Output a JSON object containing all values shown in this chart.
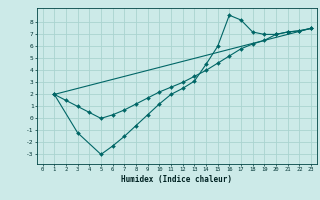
{
  "title": "",
  "xlabel": "Humidex (Indice chaleur)",
  "bg_color": "#cceae8",
  "grid_color": "#aad4d0",
  "line_color": "#006666",
  "xlim": [
    -0.5,
    23.5
  ],
  "ylim": [
    -3.8,
    9.2
  ],
  "xticks": [
    0,
    1,
    2,
    3,
    4,
    5,
    6,
    7,
    8,
    9,
    10,
    11,
    12,
    13,
    14,
    15,
    16,
    17,
    18,
    19,
    20,
    21,
    22,
    23
  ],
  "yticks": [
    -3,
    -2,
    -1,
    0,
    1,
    2,
    3,
    4,
    5,
    6,
    7,
    8
  ],
  "line1_x": [
    1,
    3,
    5,
    6,
    7,
    8,
    9,
    10,
    11,
    12,
    13,
    14,
    15,
    16,
    17,
    18,
    19,
    20,
    21,
    22,
    23
  ],
  "line1_y": [
    2.0,
    -1.2,
    -3.0,
    -2.3,
    -1.5,
    -0.6,
    0.3,
    1.2,
    2.0,
    2.5,
    3.1,
    4.5,
    6.0,
    8.6,
    8.2,
    7.2,
    7.0,
    7.0,
    7.2,
    7.3,
    7.5
  ],
  "line2_x": [
    1,
    2,
    3,
    4,
    5,
    6,
    7,
    8,
    9,
    10,
    11,
    12,
    13,
    14,
    15,
    16,
    17,
    18,
    19,
    20,
    21,
    22,
    23
  ],
  "line2_y": [
    2.0,
    1.5,
    1.0,
    0.5,
    0.0,
    0.3,
    0.7,
    1.2,
    1.7,
    2.2,
    2.6,
    3.0,
    3.5,
    4.0,
    4.6,
    5.2,
    5.8,
    6.2,
    6.5,
    7.0,
    7.2,
    7.3,
    7.5
  ],
  "line3_x": [
    1,
    23
  ],
  "line3_y": [
    2.0,
    7.5
  ]
}
